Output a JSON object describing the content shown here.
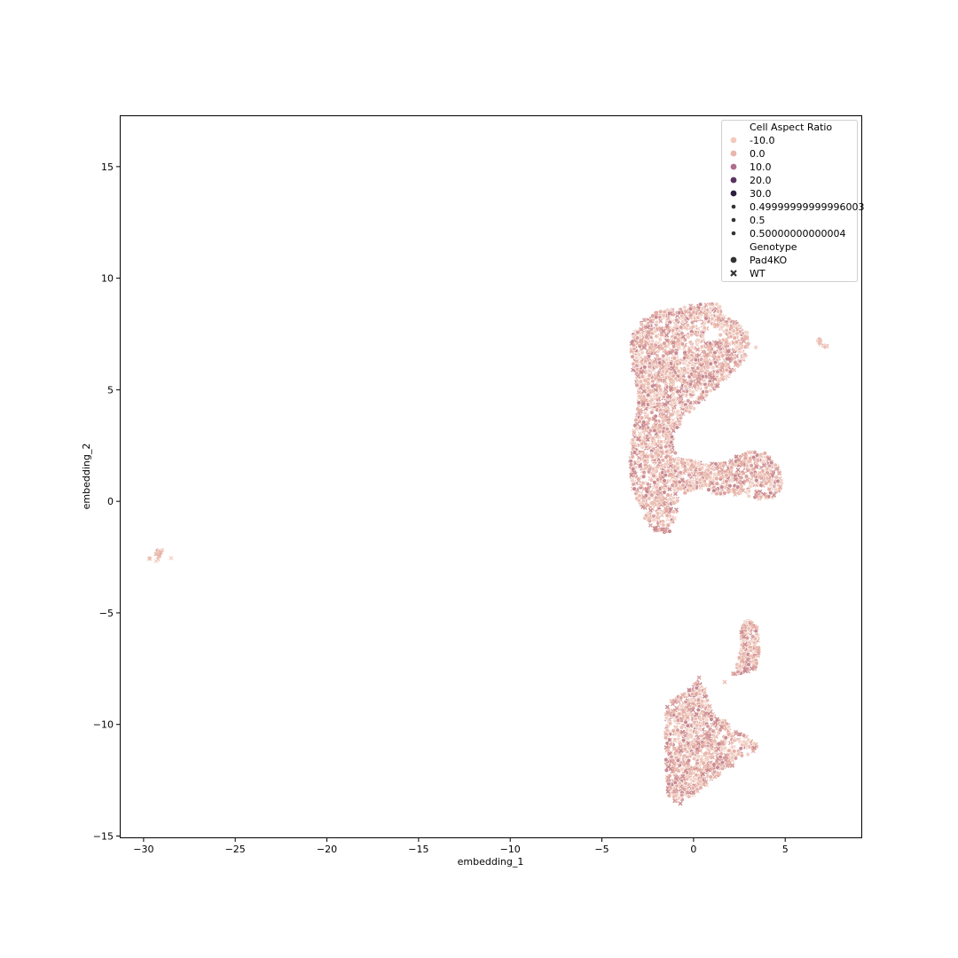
{
  "chart_data": {
    "type": "scatter",
    "title": "",
    "xlabel": "embedding_1",
    "ylabel": "embedding_2",
    "xlim": [
      -31.3,
      9.2
    ],
    "ylim": [
      -15.1,
      17.3
    ],
    "xticks": [
      -30,
      -25,
      -20,
      -15,
      -10,
      -5,
      0,
      5
    ],
    "xtick_labels": [
      "−30",
      "−25",
      "−20",
      "−15",
      "−10",
      "−5",
      "0",
      "5"
    ],
    "yticks": [
      -15,
      -10,
      -5,
      0,
      5,
      10,
      15
    ],
    "ytick_labels": [
      "−15",
      "−10",
      "−5",
      "0",
      "5",
      "10",
      "15"
    ],
    "grid": false,
    "legend": {
      "placement": "top-right",
      "entries": [
        {
          "kind": "header",
          "label": "Cell Aspect Ratio"
        },
        {
          "kind": "hue",
          "label": "-10.0",
          "color": "#f1cabe"
        },
        {
          "kind": "hue",
          "label": "0.0",
          "color": "#e9b5ad"
        },
        {
          "kind": "hue",
          "label": "10.0",
          "color": "#b06e8f"
        },
        {
          "kind": "hue",
          "label": "20.0",
          "color": "#5a3260"
        },
        {
          "kind": "hue",
          "label": "30.0",
          "color": "#2d1e3e"
        },
        {
          "kind": "size",
          "label": "0.49999999999996003",
          "color": "#333333"
        },
        {
          "kind": "size",
          "label": "0.5",
          "color": "#333333"
        },
        {
          "kind": "size",
          "label": "0.50000000000004",
          "color": "#333333"
        },
        {
          "kind": "header",
          "label": "Genotype"
        },
        {
          "kind": "style",
          "label": "Pad4KO",
          "marker": "circle",
          "color": "#333333"
        },
        {
          "kind": "style",
          "label": "WT",
          "marker": "x",
          "color": "#333333"
        }
      ]
    },
    "point_colors": [
      "#f3d3c8",
      "#ecc0b4",
      "#e6b0a5",
      "#d9a0a0",
      "#c98a92"
    ],
    "clusters": [
      {
        "name": "main-upper",
        "outline": [
          [
            -3.4,
            7.4
          ],
          [
            -3.0,
            8.0
          ],
          [
            -2.4,
            8.4
          ],
          [
            -1.2,
            8.6
          ],
          [
            0.0,
            8.8
          ],
          [
            1.5,
            8.9
          ],
          [
            1.6,
            8.3
          ],
          [
            2.4,
            8.0
          ],
          [
            3.0,
            7.5
          ],
          [
            3.0,
            6.6
          ],
          [
            2.4,
            6.0
          ],
          [
            1.4,
            5.2
          ],
          [
            0.6,
            4.6
          ],
          [
            -0.4,
            3.8
          ],
          [
            -1.2,
            3.0
          ],
          [
            -0.8,
            1.9
          ],
          [
            0.2,
            1.8
          ],
          [
            1.5,
            1.7
          ],
          [
            2.8,
            2.2
          ],
          [
            3.9,
            2.2
          ],
          [
            4.6,
            1.6
          ],
          [
            4.9,
            0.8
          ],
          [
            4.5,
            0.2
          ],
          [
            3.6,
            0.1
          ],
          [
            2.6,
            0.3
          ],
          [
            1.4,
            0.3
          ],
          [
            0.4,
            0.6
          ],
          [
            -0.8,
            0.2
          ],
          [
            -1.0,
            -0.8
          ],
          [
            -1.3,
            -1.4
          ],
          [
            -2.0,
            -1.4
          ],
          [
            -2.6,
            -0.9
          ],
          [
            -3.3,
            0.4
          ],
          [
            -3.5,
            2.0
          ],
          [
            -3.2,
            3.5
          ],
          [
            -3.0,
            4.8
          ],
          [
            -3.4,
            6.2
          ]
        ],
        "hole": [
          [
            0.5,
            7.5
          ],
          [
            0.9,
            7.9
          ],
          [
            1.6,
            7.7
          ],
          [
            1.3,
            7.2
          ],
          [
            0.7,
            7.1
          ]
        ],
        "count": 2600
      },
      {
        "name": "lower-big",
        "outline": [
          [
            -1.4,
            -9.0
          ],
          [
            -0.5,
            -8.6
          ],
          [
            0.2,
            -8.0
          ],
          [
            0.6,
            -8.4
          ],
          [
            1.0,
            -9.5
          ],
          [
            1.6,
            -9.8
          ],
          [
            2.2,
            -10.2
          ],
          [
            3.0,
            -10.6
          ],
          [
            3.6,
            -11.0
          ],
          [
            2.6,
            -11.6
          ],
          [
            1.2,
            -12.4
          ],
          [
            0.0,
            -13.2
          ],
          [
            -0.8,
            -13.6
          ],
          [
            -1.4,
            -13.2
          ],
          [
            -1.5,
            -11.8
          ],
          [
            -1.6,
            -10.4
          ]
        ],
        "count": 900
      },
      {
        "name": "lower-small",
        "outline": [
          [
            2.6,
            -5.6
          ],
          [
            3.0,
            -5.3
          ],
          [
            3.5,
            -5.6
          ],
          [
            3.6,
            -6.6
          ],
          [
            3.4,
            -7.5
          ],
          [
            2.8,
            -7.7
          ],
          [
            2.1,
            -7.8
          ],
          [
            2.5,
            -7.0
          ],
          [
            2.6,
            -6.2
          ]
        ],
        "count": 220
      },
      {
        "name": "far-left",
        "outline": [
          [
            -29.6,
            -2.2
          ],
          [
            -29.0,
            -2.1
          ],
          [
            -28.9,
            -2.5
          ],
          [
            -29.3,
            -2.8
          ],
          [
            -29.7,
            -2.6
          ]
        ],
        "count": 14
      },
      {
        "name": "right-streak",
        "outline": [
          [
            6.7,
            7.4
          ],
          [
            6.95,
            7.3
          ],
          [
            7.35,
            6.95
          ],
          [
            7.1,
            6.85
          ],
          [
            6.8,
            7.1
          ]
        ],
        "count": 14
      },
      {
        "name": "stragglers",
        "points": [
          [
            -28.5,
            -2.55
          ],
          [
            1.7,
            -8.1
          ],
          [
            3.4,
            6.9
          ],
          [
            0.3,
            -7.9
          ],
          [
            4.6,
            0.9
          ]
        ]
      }
    ]
  }
}
